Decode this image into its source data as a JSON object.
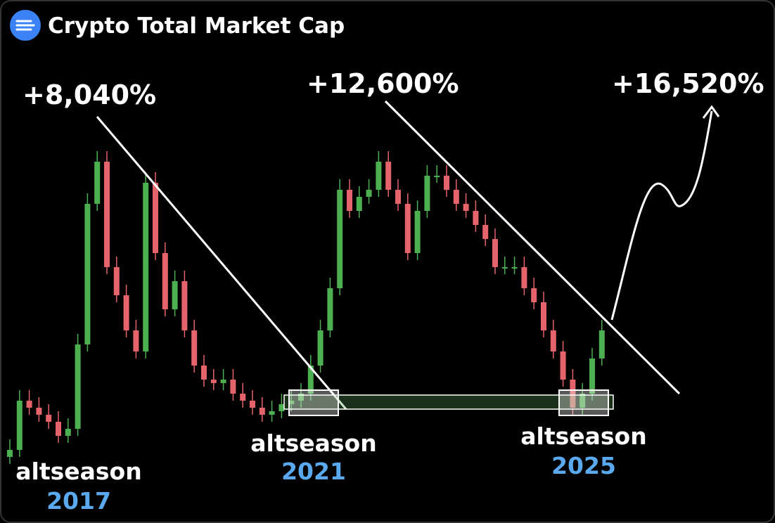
{
  "chart_data": {
    "type": "candlestick",
    "title": "Crypto Total Market Cap",
    "up_color": "#4caf50",
    "down_color": "#e5636b",
    "ylim": [
      0,
      100
    ],
    "open": [
      2,
      4,
      18,
      16,
      14,
      12,
      8,
      10,
      34,
      74,
      86,
      56,
      48,
      38,
      32,
      80,
      60,
      44,
      52,
      38,
      28,
      24,
      23,
      24,
      20,
      18,
      16,
      14,
      15,
      17,
      18,
      20,
      28,
      38,
      50,
      78,
      72,
      76,
      78,
      86,
      78,
      74,
      60,
      72,
      82,
      82,
      78,
      74,
      72,
      68,
      64,
      56,
      56,
      56,
      50,
      46,
      38,
      32,
      24,
      16,
      20,
      30
    ],
    "high": [
      7,
      21,
      21,
      19,
      17,
      15,
      13,
      37,
      77,
      89,
      89,
      59,
      51,
      41,
      83,
      83,
      63,
      55,
      55,
      41,
      31,
      27,
      27,
      27,
      23,
      21,
      19,
      18,
      20,
      21,
      23,
      31,
      41,
      53,
      81,
      81,
      79,
      81,
      89,
      89,
      81,
      77,
      75,
      85,
      85,
      85,
      81,
      77,
      75,
      71,
      67,
      59,
      59,
      59,
      53,
      49,
      41,
      35,
      27,
      23,
      33,
      41
    ],
    "low": [
      0,
      2,
      14,
      12,
      10,
      6,
      6,
      8,
      32,
      72,
      54,
      46,
      36,
      30,
      30,
      58,
      42,
      42,
      36,
      26,
      22,
      21,
      21,
      18,
      16,
      14,
      12,
      12,
      13,
      15,
      16,
      18,
      26,
      36,
      48,
      70,
      70,
      74,
      76,
      76,
      72,
      58,
      58,
      70,
      80,
      76,
      72,
      70,
      66,
      62,
      54,
      54,
      54,
      48,
      44,
      36,
      30,
      22,
      14,
      14,
      18,
      28
    ],
    "close": [
      4,
      18,
      16,
      14,
      12,
      8,
      10,
      34,
      74,
      86,
      56,
      48,
      38,
      32,
      80,
      60,
      44,
      52,
      38,
      28,
      24,
      23,
      24,
      20,
      18,
      16,
      14,
      15,
      17,
      18,
      20,
      28,
      38,
      50,
      78,
      72,
      76,
      78,
      86,
      78,
      74,
      60,
      72,
      82,
      82,
      78,
      74,
      72,
      68,
      64,
      56,
      56,
      56,
      50,
      46,
      38,
      32,
      24,
      16,
      20,
      30,
      38
    ],
    "annotations": {
      "peak_2017": "+8,040%",
      "peak_2021": "+12,600%",
      "target": "+16,520%",
      "label_2017": "altseason",
      "year_2017": "2017",
      "label_2021": "altseason",
      "year_2021": "2021",
      "label_2025": "altseason",
      "year_2025": "2025"
    }
  }
}
